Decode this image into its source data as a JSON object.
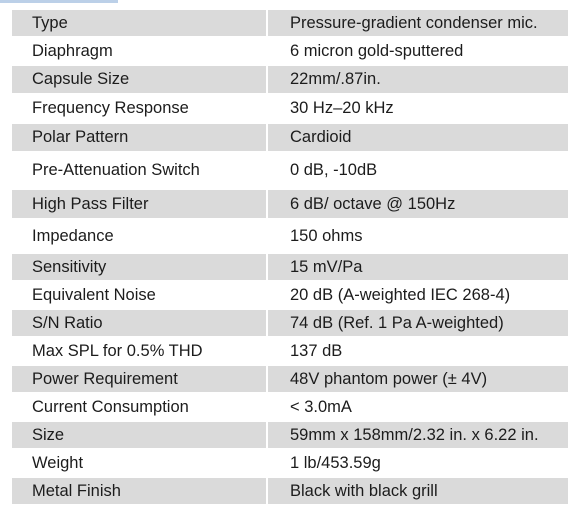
{
  "specs": {
    "rows": [
      {
        "label": "Type",
        "value": "Pressure-gradient condenser mic."
      },
      {
        "label": "Diaphragm",
        "value": "6 micron gold-sputtered"
      },
      {
        "label": "Capsule Size",
        "value": "22mm/.87in."
      },
      {
        "label": "Frequency Response",
        "value": "30 Hz–20 kHz"
      },
      {
        "label": "Polar Pattern",
        "value": "Cardioid"
      },
      {
        "label": "Pre-Attenuation Switch",
        "value": "0 dB, -10dB"
      },
      {
        "label": "High Pass Filter",
        "value": "6 dB/ octave @ 150Hz"
      },
      {
        "label": "Impedance",
        "value": "150 ohms"
      },
      {
        "label": "Sensitivity",
        "value": "15 mV/Pa"
      },
      {
        "label": "Equivalent Noise",
        "value": "20 dB (A-weighted IEC 268-4)"
      },
      {
        "label": "S/N Ratio",
        "value": "74 dB (Ref. 1 Pa A-weighted)"
      },
      {
        "label": "Max SPL for 0.5% THD",
        "value": "137 dB"
      },
      {
        "label": "Power Requirement",
        "value": "48V phantom power (± 4V)"
      },
      {
        "label": "Current Consumption",
        "value": "< 3.0mA"
      },
      {
        "label": "Size",
        "value": "59mm x 158mm/2.32 in. x 6.22 in."
      },
      {
        "label": "Weight",
        "value": "1 lb/453.59g"
      },
      {
        "label": "Metal Finish",
        "value": "Black with black grill"
      }
    ]
  },
  "colors": {
    "shaded_row": "#dadada",
    "plain_row": "#ffffff",
    "text": "#1c1c1c",
    "accent": "#bcd0e8"
  }
}
